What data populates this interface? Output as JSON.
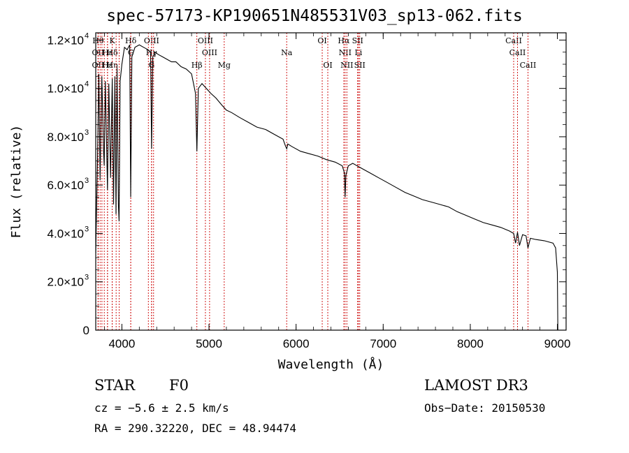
{
  "chart_data": {
    "type": "line",
    "title": "spec-57173-KP190651N485531V03_sp13-062.fits",
    "xlabel": "Wavelength (Å)",
    "ylabel": "Flux (relative)",
    "xlim": [
      3700,
      9100
    ],
    "ylim": [
      0,
      12300
    ],
    "x_ticks": [
      {
        "value": 4000,
        "label": "4000"
      },
      {
        "value": 5000,
        "label": "5000"
      },
      {
        "value": 6000,
        "label": "6000"
      },
      {
        "value": 7000,
        "label": "7000"
      },
      {
        "value": 8000,
        "label": "8000"
      },
      {
        "value": 9000,
        "label": "9000"
      }
    ],
    "y_ticks": [
      {
        "value": 0,
        "mant": "0",
        "exp": ""
      },
      {
        "value": 2000,
        "mant": "2.0×10",
        "exp": "3"
      },
      {
        "value": 4000,
        "mant": "4.0×10",
        "exp": "3"
      },
      {
        "value": 6000,
        "mant": "6.0×10",
        "exp": "3"
      },
      {
        "value": 8000,
        "mant": "8.0×10",
        "exp": "3"
      },
      {
        "value": 10000,
        "mant": "1.0×10",
        "exp": "4"
      },
      {
        "value": 12000,
        "mant": "1.2×10",
        "exp": "4"
      }
    ],
    "series": [
      {
        "name": "spectrum",
        "x": [
          3700,
          3720,
          3735,
          3750,
          3770,
          3790,
          3797,
          3810,
          3835,
          3850,
          3870,
          3889,
          3905,
          3920,
          3933,
          3945,
          3960,
          3968,
          3980,
          4000,
          4030,
          4060,
          4090,
          4101,
          4115,
          4150,
          4200,
          4250,
          4300,
          4330,
          4341,
          4355,
          4380,
          4420,
          4470,
          4520,
          4570,
          4620,
          4680,
          4740,
          4800,
          4845,
          4861,
          4878,
          4920,
          4970,
          5020,
          5080,
          5150,
          5200,
          5260,
          5350,
          5450,
          5550,
          5650,
          5750,
          5850,
          5880,
          5893,
          5905,
          5950,
          6050,
          6150,
          6250,
          6350,
          6450,
          6530,
          6555,
          6563,
          6572,
          6600,
          6650,
          6750,
          6850,
          6950,
          7050,
          7150,
          7250,
          7350,
          7450,
          7550,
          7650,
          7750,
          7850,
          7950,
          8050,
          8150,
          8250,
          8350,
          8450,
          8498,
          8520,
          8542,
          8565,
          8600,
          8640,
          8662,
          8690,
          8750,
          8850,
          8950,
          8980,
          9000,
          9005
        ],
        "y": [
          3200,
          7000,
          10600,
          6200,
          10500,
          7400,
          6800,
          10300,
          5800,
          10200,
          6300,
          10400,
          5200,
          10500,
          4800,
          10800,
          5200,
          4500,
          10300,
          11000,
          11700,
          11600,
          11800,
          5500,
          11300,
          11700,
          11800,
          11700,
          11600,
          11500,
          7500,
          11300,
          11500,
          11400,
          11300,
          11200,
          11100,
          11100,
          10900,
          10800,
          10600,
          9800,
          7400,
          10000,
          10200,
          10000,
          9800,
          9600,
          9300,
          9100,
          9000,
          8800,
          8600,
          8400,
          8300,
          8100,
          7900,
          7600,
          7500,
          7700,
          7600,
          7400,
          7300,
          7200,
          7050,
          6950,
          6800,
          6500,
          5500,
          6400,
          6800,
          6900,
          6700,
          6500,
          6300,
          6100,
          5900,
          5700,
          5550,
          5400,
          5300,
          5200,
          5100,
          4900,
          4750,
          4600,
          4450,
          4350,
          4250,
          4100,
          4000,
          3600,
          4050,
          3500,
          3950,
          3900,
          3400,
          3800,
          3750,
          3700,
          3600,
          3400,
          2400,
          0
        ]
      }
    ],
    "lines": [
      {
        "wave": 3727,
        "label": "Hθ",
        "row": 1
      },
      {
        "wave": 3727,
        "label": "OII",
        "row": 2
      },
      {
        "wave": 3727,
        "label": "OII",
        "row": 3
      },
      {
        "wave": 3750,
        "label": "",
        "row": 0
      },
      {
        "wave": 3771,
        "label": "",
        "row": 0
      },
      {
        "wave": 3798,
        "label": "",
        "row": 0
      },
      {
        "wave": 3835,
        "label": "Hε",
        "row": 2
      },
      {
        "wave": 3835,
        "label": "Hε",
        "row": 3
      },
      {
        "wave": 3889,
        "label": "K",
        "row": 1
      },
      {
        "wave": 3889,
        "label": "Hδ",
        "row": 2
      },
      {
        "wave": 3889,
        "label": "Hη",
        "row": 3
      },
      {
        "wave": 3934,
        "label": "",
        "row": 0
      },
      {
        "wave": 3969,
        "label": "",
        "row": 0
      },
      {
        "wave": 4102,
        "label": "Hδ",
        "row": 1
      },
      {
        "wave": 4102,
        "label": "G",
        "row": 2
      },
      {
        "wave": 4304,
        "label": "",
        "row": 0
      },
      {
        "wave": 4341,
        "label": "OIII",
        "row": 1
      },
      {
        "wave": 4341,
        "label": "Hγ",
        "row": 2
      },
      {
        "wave": 4341,
        "label": "G",
        "row": 3
      },
      {
        "wave": 4364,
        "label": "",
        "row": 0
      },
      {
        "wave": 4861,
        "label": "Hβ",
        "row": 3
      },
      {
        "wave": 4959,
        "label": "OIII",
        "row": 1
      },
      {
        "wave": 5007,
        "label": "OIII",
        "row": 2
      },
      {
        "wave": 5175,
        "label": "Mg",
        "row": 3
      },
      {
        "wave": 5892,
        "label": "Na",
        "row": 2
      },
      {
        "wave": 6300,
        "label": "OI",
        "row": 1
      },
      {
        "wave": 6364,
        "label": "OI",
        "row": 3
      },
      {
        "wave": 6548,
        "label": "Hα",
        "row": 1
      },
      {
        "wave": 6563,
        "label": "NII",
        "row": 2
      },
      {
        "wave": 6583,
        "label": "NII",
        "row": 3
      },
      {
        "wave": 6707,
        "label": "SII",
        "row": 1
      },
      {
        "wave": 6716,
        "label": "Li",
        "row": 2
      },
      {
        "wave": 6731,
        "label": "SII",
        "row": 3
      },
      {
        "wave": 8498,
        "label": "CaII",
        "row": 1
      },
      {
        "wave": 8542,
        "label": "CaII",
        "row": 2
      },
      {
        "wave": 8662,
        "label": "CaII",
        "row": 3
      }
    ],
    "line_color": "#cc0000"
  },
  "info": {
    "class_label": "STAR",
    "subclass": "F0",
    "survey": "LAMOST DR3",
    "cz": "cz = −5.6 ± 2.5 km/s",
    "obs_date": "Obs−Date: 20150530",
    "coords": "RA = 290.32220, DEC =  48.94474"
  }
}
